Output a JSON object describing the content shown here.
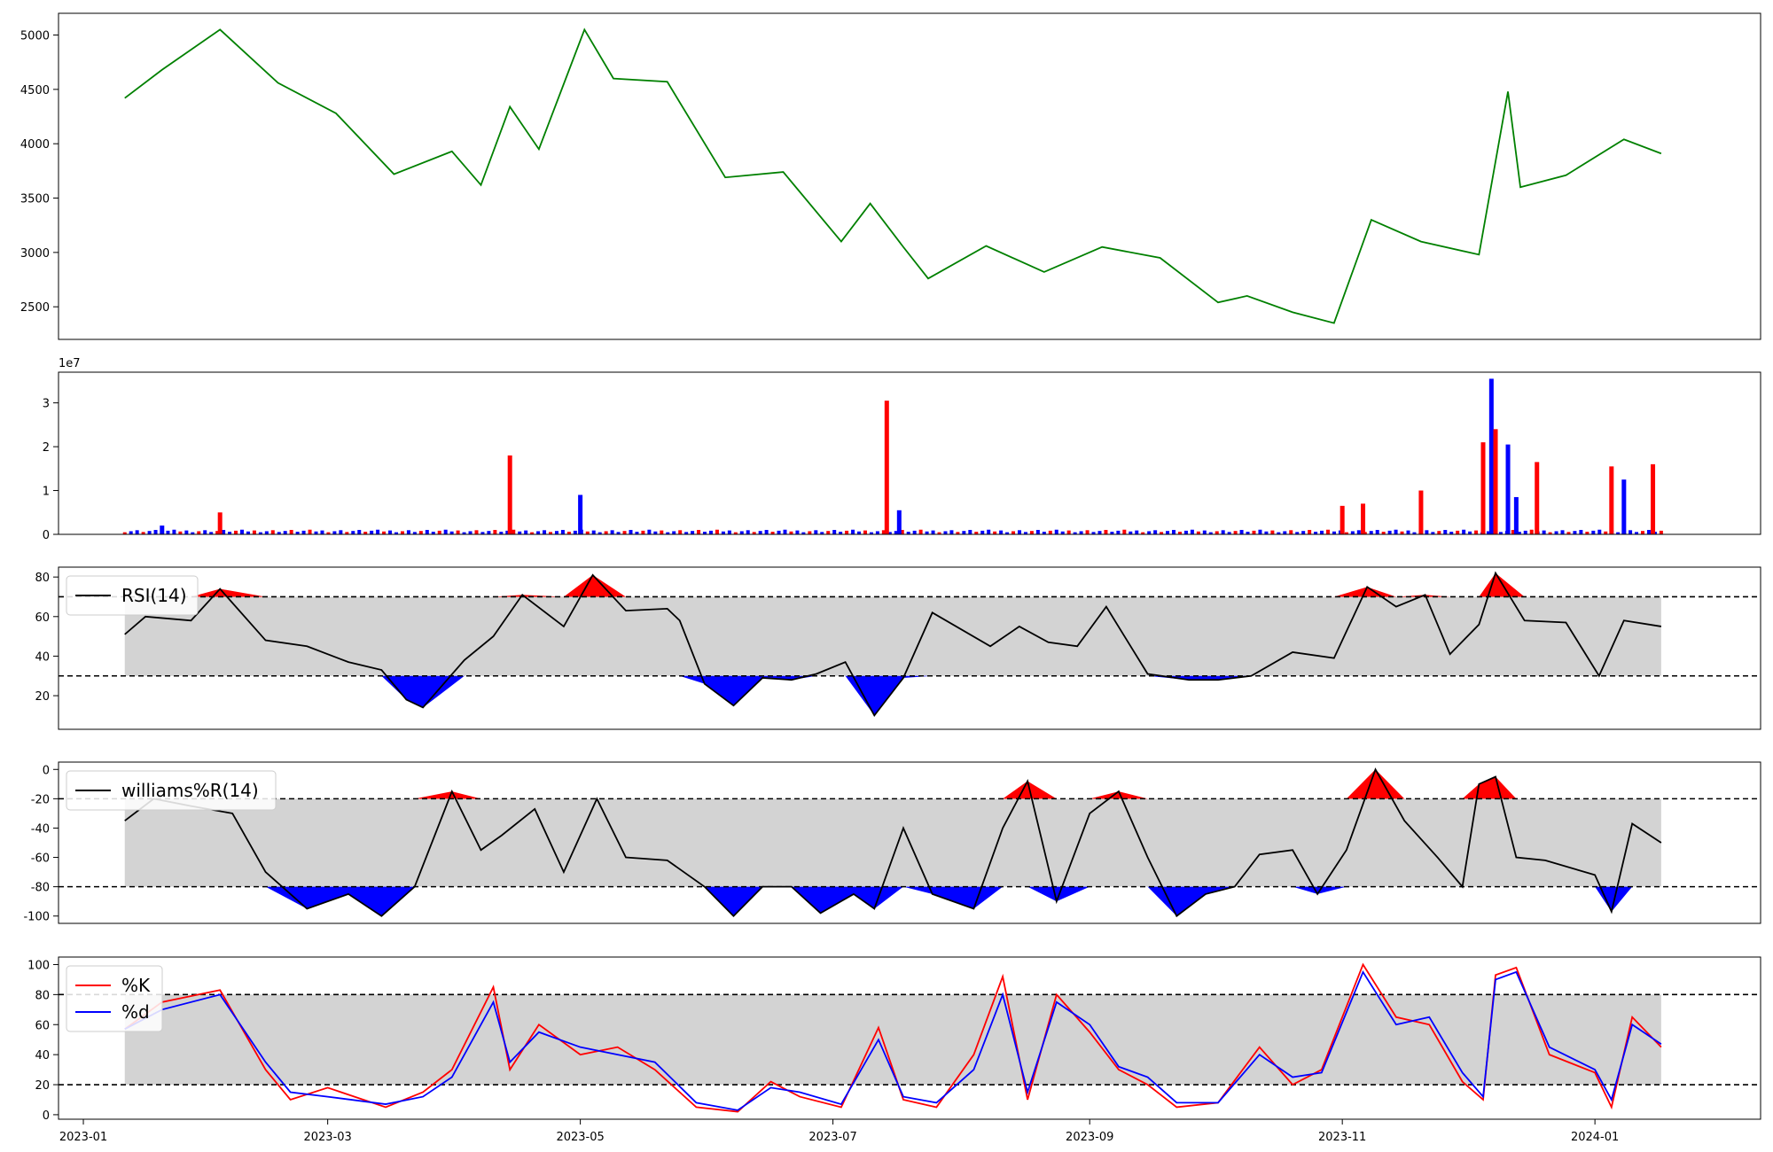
{
  "chart_data": [
    {
      "type": "line",
      "id": "price",
      "color": "#008000",
      "ylim": [
        2200,
        5200
      ],
      "yticks": [
        2500,
        3000,
        3500,
        4000,
        4500,
        5000
      ],
      "x": [
        "2023-01-11",
        "2023-01-20",
        "2023-02-03",
        "2023-02-17",
        "2023-03-03",
        "2023-03-17",
        "2023-03-31",
        "2023-04-07",
        "2023-04-14",
        "2023-04-21",
        "2023-05-02",
        "2023-05-09",
        "2023-05-22",
        "2023-06-05",
        "2023-06-19",
        "2023-07-03",
        "2023-07-10",
        "2023-07-18",
        "2023-07-24",
        "2023-08-07",
        "2023-08-21",
        "2023-09-04",
        "2023-09-18",
        "2023-10-02",
        "2023-10-09",
        "2023-10-20",
        "2023-10-30",
        "2023-11-08",
        "2023-11-20",
        "2023-12-04",
        "2023-12-11",
        "2023-12-14",
        "2023-12-25",
        "2024-01-08",
        "2024-01-17"
      ],
      "y": [
        4420,
        4680,
        5050,
        4560,
        4280,
        3720,
        3930,
        3620,
        4340,
        3950,
        5050,
        4600,
        4570,
        3690,
        3740,
        3100,
        3450,
        3050,
        2760,
        3060,
        2820,
        3050,
        2950,
        2540,
        2600,
        2450,
        2350,
        3300,
        3100,
        2980,
        4480,
        3600,
        3710,
        4040,
        3910
      ]
    },
    {
      "type": "bar",
      "id": "volume",
      "offset_label": "1e7",
      "ylim": [
        0,
        3.7
      ],
      "yticks": [
        0,
        1,
        2,
        3
      ],
      "up_color": "#ff0000",
      "down_color": "#0000ff",
      "x": [
        "2023-01-20",
        "2023-02-03",
        "2023-04-14",
        "2023-05-01",
        "2023-07-14",
        "2023-07-17",
        "2023-11-01",
        "2023-11-06",
        "2023-11-20",
        "2023-12-05",
        "2023-12-07",
        "2023-12-08",
        "2023-12-11",
        "2023-12-13",
        "2023-12-18",
        "2024-01-05",
        "2024-01-08",
        "2024-01-15"
      ],
      "values": [
        0.2,
        0.5,
        1.8,
        0.9,
        3.05,
        0.55,
        0.65,
        0.7,
        1.0,
        2.1,
        3.55,
        2.4,
        2.05,
        0.85,
        1.65,
        1.55,
        1.25,
        1.6
      ],
      "direction": [
        "down",
        "up",
        "up",
        "down",
        "up",
        "down",
        "up",
        "up",
        "up",
        "up",
        "down",
        "up",
        "down",
        "down",
        "up",
        "up",
        "down",
        "up"
      ],
      "baseline_value": 0.08
    },
    {
      "type": "line",
      "id": "rsi",
      "series": [
        {
          "name": "RSI(14)",
          "color": "#000000"
        }
      ],
      "ylim": [
        3,
        85
      ],
      "yticks": [
        20,
        40,
        60,
        80
      ],
      "band": [
        30,
        70
      ],
      "x": [
        "2023-01-11",
        "2023-01-16",
        "2023-01-27",
        "2023-02-03",
        "2023-02-14",
        "2023-02-24",
        "2023-03-06",
        "2023-03-14",
        "2023-03-20",
        "2023-03-24",
        "2023-04-03",
        "2023-04-10",
        "2023-04-17",
        "2023-04-27",
        "2023-05-04",
        "2023-05-12",
        "2023-05-22",
        "2023-05-25",
        "2023-05-31",
        "2023-06-07",
        "2023-06-14",
        "2023-06-21",
        "2023-06-27",
        "2023-07-04",
        "2023-07-11",
        "2023-07-18",
        "2023-07-25",
        "2023-08-08",
        "2023-08-15",
        "2023-08-22",
        "2023-08-29",
        "2023-09-05",
        "2023-09-15",
        "2023-09-25",
        "2023-10-02",
        "2023-10-10",
        "2023-10-20",
        "2023-10-30",
        "2023-11-07",
        "2023-11-14",
        "2023-11-21",
        "2023-11-27",
        "2023-12-04",
        "2023-12-08",
        "2023-12-15",
        "2023-12-25",
        "2024-01-02",
        "2024-01-08",
        "2024-01-17"
      ],
      "y": [
        51,
        60,
        58,
        74,
        48,
        45,
        37,
        33,
        18,
        14,
        38,
        50,
        71,
        55,
        81,
        63,
        64,
        58,
        26,
        15,
        29,
        28,
        31,
        37,
        10,
        29,
        62,
        45,
        55,
        47,
        45,
        65,
        31,
        28,
        28,
        30,
        42,
        39,
        75,
        65,
        71,
        41,
        56,
        82,
        58,
        57,
        30,
        58,
        55
      ]
    },
    {
      "type": "line",
      "id": "williams",
      "series": [
        {
          "name": "williams%R(14)",
          "color": "#000000"
        }
      ],
      "ylim": [
        -105,
        5
      ],
      "yticks": [
        -100,
        -80,
        -60,
        -40,
        -20,
        0
      ],
      "band": [
        -80,
        -20
      ],
      "x": [
        "2023-01-11",
        "2023-01-18",
        "2023-01-27",
        "2023-02-06",
        "2023-02-14",
        "2023-02-24",
        "2023-03-06",
        "2023-03-14",
        "2023-03-22",
        "2023-03-31",
        "2023-04-07",
        "2023-04-12",
        "2023-04-20",
        "2023-04-27",
        "2023-05-05",
        "2023-05-12",
        "2023-05-22",
        "2023-05-31",
        "2023-06-07",
        "2023-06-14",
        "2023-06-21",
        "2023-06-28",
        "2023-07-06",
        "2023-07-11",
        "2023-07-18",
        "2023-07-25",
        "2023-08-04",
        "2023-08-11",
        "2023-08-17",
        "2023-08-24",
        "2023-09-01",
        "2023-09-08",
        "2023-09-15",
        "2023-09-22",
        "2023-09-29",
        "2023-10-06",
        "2023-10-12",
        "2023-10-20",
        "2023-10-26",
        "2023-11-02",
        "2023-11-09",
        "2023-11-16",
        "2023-11-24",
        "2023-11-30",
        "2023-12-04",
        "2023-12-08",
        "2023-12-13",
        "2023-12-20",
        "2024-01-01",
        "2024-01-05",
        "2024-01-10",
        "2024-01-17"
      ],
      "y": [
        -35,
        -20,
        -25,
        -30,
        -70,
        -95,
        -85,
        -100,
        -80,
        -15,
        -55,
        -45,
        -27,
        -70,
        -20,
        -60,
        -62,
        -80,
        -100,
        -80,
        -80,
        -98,
        -85,
        -95,
        -40,
        -85,
        -95,
        -40,
        -8,
        -90,
        -30,
        -15,
        -60,
        -100,
        -85,
        -80,
        -58,
        -55,
        -85,
        -55,
        0,
        -35,
        -60,
        -80,
        -10,
        -5,
        -60,
        -62,
        -72,
        -97,
        -37,
        -50
      ]
    },
    {
      "type": "line",
      "id": "stochastic",
      "ylim": [
        -3,
        105
      ],
      "yticks": [
        0,
        20,
        40,
        60,
        80,
        100
      ],
      "band": [
        20,
        80
      ],
      "x_ticks": [
        "2023-01",
        "2023-03",
        "2023-05",
        "2023-07",
        "2023-09",
        "2023-11",
        "2024-01"
      ],
      "x_range": [
        "2022-12-26",
        "2024-02-10"
      ],
      "x": [
        "2023-01-11",
        "2023-01-20",
        "2023-02-03",
        "2023-02-14",
        "2023-02-20",
        "2023-03-01",
        "2023-03-15",
        "2023-03-24",
        "2023-03-31",
        "2023-04-10",
        "2023-04-14",
        "2023-04-21",
        "2023-05-01",
        "2023-05-10",
        "2023-05-19",
        "2023-05-29",
        "2023-06-08",
        "2023-06-16",
        "2023-06-23",
        "2023-07-03",
        "2023-07-12",
        "2023-07-18",
        "2023-07-26",
        "2023-08-04",
        "2023-08-11",
        "2023-08-17",
        "2023-08-24",
        "2023-09-01",
        "2023-09-08",
        "2023-09-15",
        "2023-09-22",
        "2023-10-02",
        "2023-10-12",
        "2023-10-20",
        "2023-10-27",
        "2023-11-06",
        "2023-11-14",
        "2023-11-22",
        "2023-11-30",
        "2023-12-05",
        "2023-12-08",
        "2023-12-13",
        "2023-12-21",
        "2024-01-01",
        "2024-01-05",
        "2024-01-10",
        "2024-01-17"
      ],
      "series": [
        {
          "name": "%K",
          "color": "#ff0000",
          "values": [
            57,
            75,
            83,
            30,
            10,
            18,
            5,
            15,
            30,
            85,
            30,
            60,
            40,
            45,
            30,
            5,
            2,
            22,
            12,
            5,
            58,
            10,
            5,
            40,
            92,
            10,
            80,
            55,
            30,
            20,
            5,
            8,
            45,
            20,
            30,
            100,
            65,
            60,
            22,
            10,
            93,
            98,
            40,
            28,
            5,
            65,
            45
          ]
        },
        {
          "name": "%d",
          "color": "#0000ff",
          "values": [
            57,
            70,
            80,
            35,
            15,
            12,
            7,
            12,
            25,
            75,
            35,
            55,
            45,
            40,
            35,
            8,
            3,
            18,
            15,
            7,
            50,
            12,
            8,
            30,
            80,
            15,
            75,
            60,
            32,
            25,
            8,
            8,
            40,
            25,
            28,
            95,
            60,
            65,
            28,
            12,
            90,
            95,
            45,
            30,
            10,
            60,
            47
          ]
        }
      ]
    }
  ]
}
